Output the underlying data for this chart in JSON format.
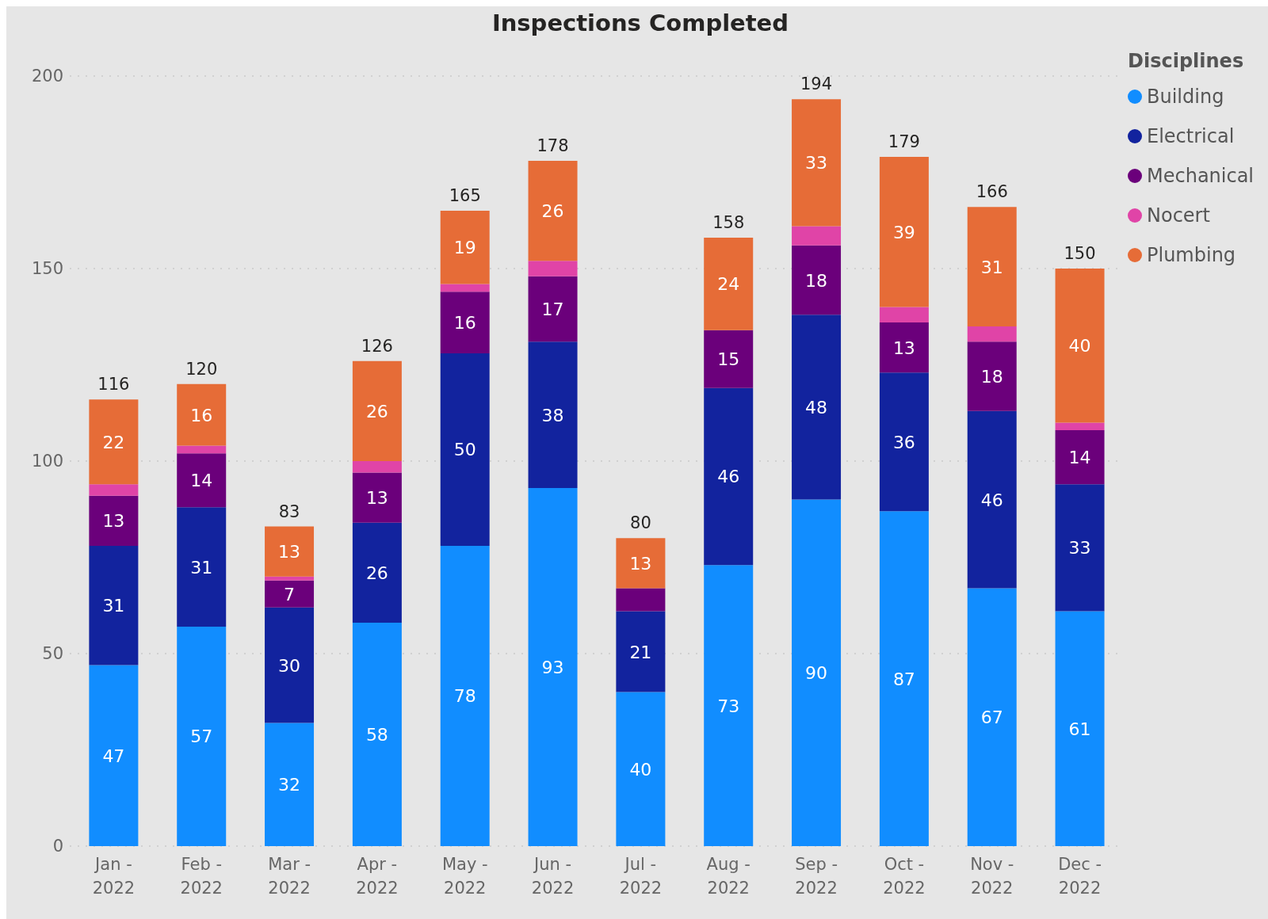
{
  "chart_data": {
    "type": "bar",
    "title": "Inspections Completed",
    "legend_title": "Disciplines",
    "stacked": true,
    "grid": "y",
    "legend": "top right",
    "marker": "circle",
    "categories": [
      "Jan - 2022",
      "Feb - 2022",
      "Mar - 2022",
      "Apr - 2022",
      "May - 2022",
      "Jun - 2022",
      "Jul - 2022",
      "Aug - 2022",
      "Sep - 2022",
      "Oct - 2022",
      "Nov - 2022",
      "Dec - 2022"
    ],
    "ylim": [
      0,
      200
    ],
    "yticks": [
      0,
      50,
      100,
      150,
      200
    ],
    "series": [
      {
        "name": "Building",
        "color": "#118dff",
        "values": [
          47,
          57,
          32,
          58,
          78,
          93,
          40,
          73,
          90,
          87,
          67,
          61
        ],
        "value_labels": [
          "47",
          "57",
          "32",
          "58",
          "78",
          "93",
          "40",
          "73",
          "90",
          "87",
          "67",
          "61"
        ]
      },
      {
        "name": "Electrical",
        "color": "#12239e",
        "values": [
          31,
          31,
          30,
          26,
          50,
          38,
          21,
          46,
          48,
          36,
          46,
          33
        ],
        "value_labels": [
          "31",
          "31",
          "30",
          "26",
          "50",
          "38",
          "21",
          "46",
          "48",
          "36",
          "46",
          "33"
        ]
      },
      {
        "name": "Mechanical",
        "color": "#6b007b",
        "values": [
          13,
          14,
          7,
          13,
          16,
          17,
          6,
          15,
          18,
          13,
          18,
          14
        ],
        "value_labels": [
          "13",
          "14",
          "7",
          "13",
          "16",
          "17",
          null,
          "15",
          "18",
          "13",
          "18",
          "14"
        ]
      },
      {
        "name": "Nocert",
        "color": "#e044a7",
        "values": [
          3,
          2,
          1,
          3,
          2,
          4,
          0,
          0,
          5,
          4,
          4,
          2
        ],
        "value_labels": [
          null,
          null,
          null,
          null,
          null,
          null,
          null,
          null,
          null,
          null,
          null,
          null
        ]
      },
      {
        "name": "Plumbing",
        "color": "#e66c37",
        "values": [
          22,
          16,
          13,
          26,
          19,
          26,
          13,
          24,
          33,
          39,
          31,
          40
        ],
        "value_labels": [
          "22",
          "16",
          "13",
          "26",
          "19",
          "26",
          "13",
          "24",
          "33",
          "39",
          "31",
          "40"
        ]
      }
    ],
    "totals": [
      "116",
      "120",
      "83",
      "126",
      "165",
      "178",
      "80",
      "158",
      "194",
      "179",
      "166",
      "150"
    ]
  }
}
